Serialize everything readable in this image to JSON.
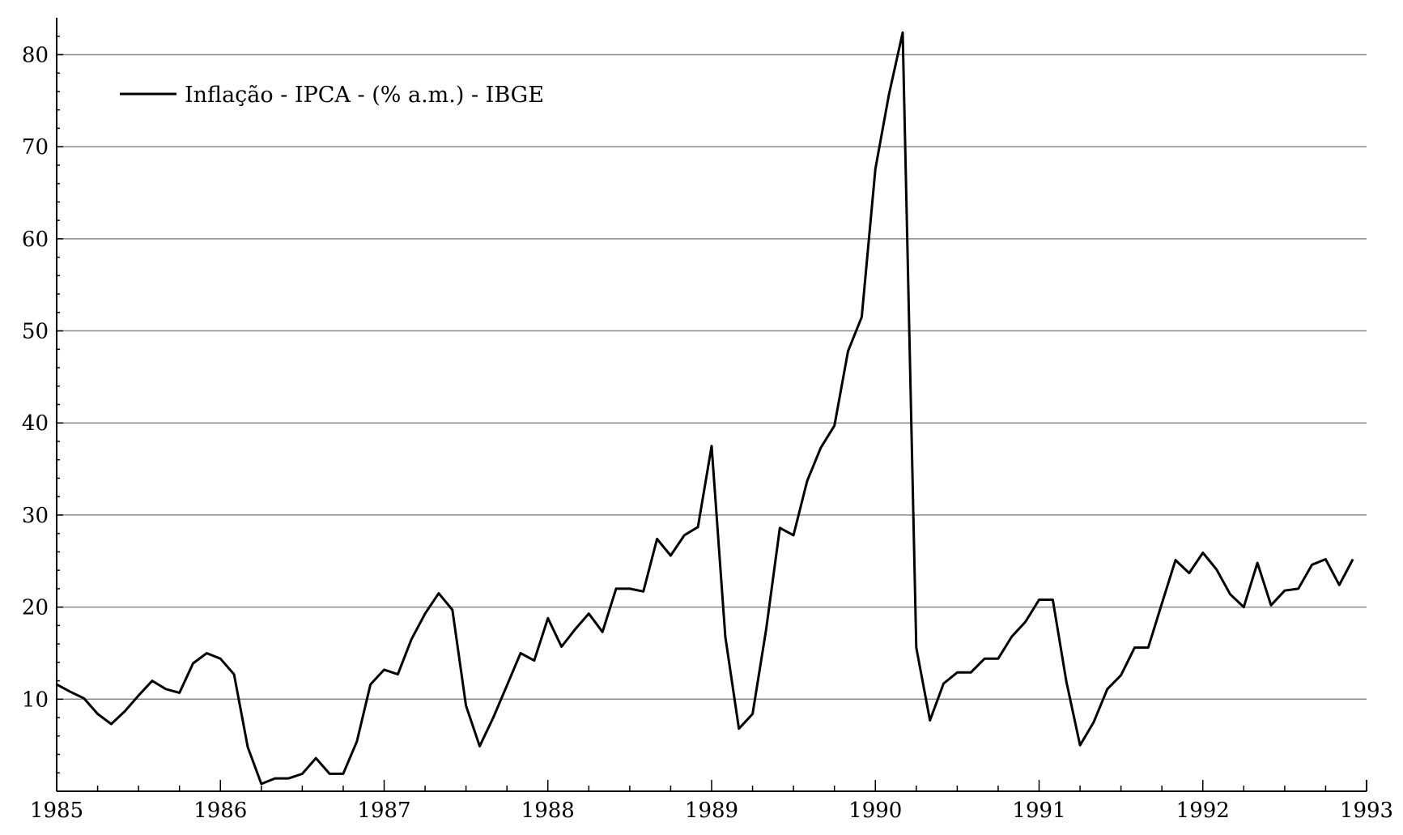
{
  "chart_data": {
    "type": "line",
    "title": "",
    "xlabel": "",
    "ylabel": "",
    "xlim": [
      1985,
      1993
    ],
    "ylim": [
      0,
      84
    ],
    "grid": true,
    "legend_position": "top-left",
    "x_ticks": [
      "1985",
      "1986",
      "1987",
      "1988",
      "1989",
      "1990",
      "1991",
      "1992",
      "1993"
    ],
    "y_ticks": [
      "10",
      "20",
      "30",
      "40",
      "50",
      "60",
      "70",
      "80"
    ],
    "series": [
      {
        "name": "Inflação - IPCA - (% a.m.) - IBGE",
        "color": "#000000",
        "start": "1985-01",
        "frequency": "monthly",
        "values": [
          11.6,
          10.8,
          10.1,
          8.4,
          7.3,
          8.7,
          10.4,
          12.0,
          11.1,
          10.7,
          13.9,
          15.0,
          14.4,
          12.7,
          4.8,
          0.8,
          1.4,
          1.4,
          1.9,
          3.6,
          1.9,
          1.9,
          5.4,
          11.6,
          13.2,
          12.7,
          16.5,
          19.3,
          21.5,
          19.7,
          9.3,
          4.9,
          8.0,
          11.5,
          15.0,
          14.2,
          18.8,
          15.7,
          17.6,
          19.3,
          17.3,
          22.0,
          22.0,
          21.7,
          27.4,
          25.6,
          27.8,
          28.7,
          37.5,
          16.8,
          6.8,
          8.4,
          17.6,
          28.6,
          27.8,
          33.7,
          37.3,
          39.7,
          47.8,
          51.5,
          67.6,
          75.7,
          82.4,
          15.6,
          7.7,
          11.7,
          12.9,
          12.9,
          14.4,
          14.4,
          16.8,
          18.4,
          20.8,
          20.8,
          11.9,
          5.0,
          7.5,
          11.1,
          12.6,
          15.6,
          15.6,
          20.4,
          25.1,
          23.7,
          25.9,
          24.1,
          21.4,
          20.0,
          24.8,
          20.2,
          21.8,
          22.0,
          24.6,
          25.2,
          22.4,
          25.2
        ]
      }
    ]
  }
}
